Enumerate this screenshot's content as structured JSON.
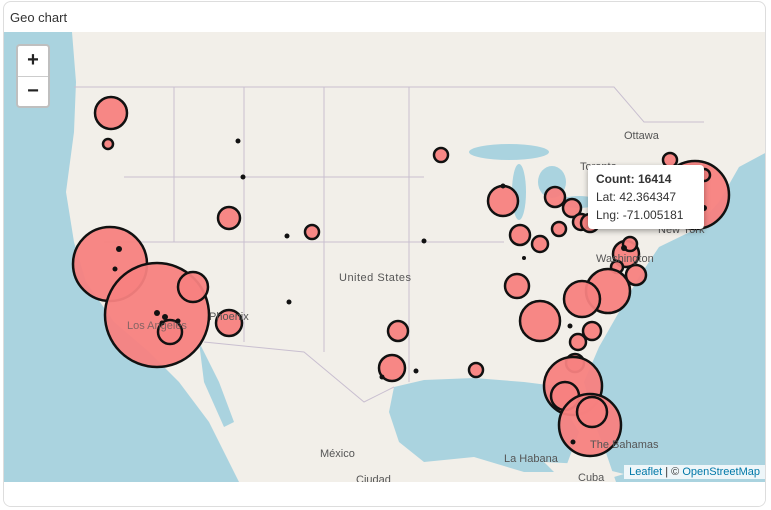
{
  "header": {
    "title": "Geo chart"
  },
  "zoom": {
    "in": "+",
    "out": "−"
  },
  "labels": {
    "ottawa": "Ottawa",
    "toronto": "Toronto",
    "new_york": "New York",
    "washington": "Washington",
    "united_states": "United States",
    "los_angeles": "Los Angeles",
    "phoenix": "Phoenix",
    "mexico": "México",
    "la_habana": "La Habana",
    "ciudad": "Ciudad",
    "cuba": "Cuba",
    "bahamas": "The Bahamas"
  },
  "tooltip": {
    "count_label": "Count:",
    "count": 16414,
    "lat_label": "Lat:",
    "lat": 42.364347,
    "lng_label": "Lng:",
    "lng": -71.005181
  },
  "attribution": {
    "leaflet": "Leaflet",
    "separator": "| ©",
    "osm": "OpenStreetMap"
  }
}
